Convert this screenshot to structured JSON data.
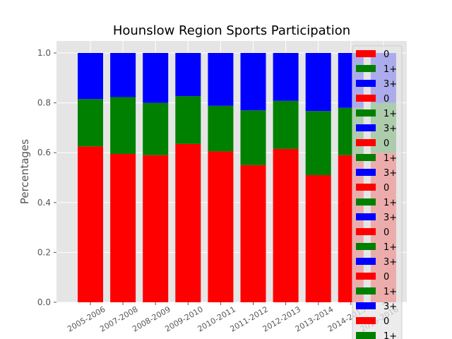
{
  "chart_data": {
    "type": "bar",
    "stacked": true,
    "title": "Hounslow Region Sports Participation",
    "xlabel": "",
    "ylabel": "Percentages",
    "ylim": [
      0,
      1.0
    ],
    "yticks": [
      "0.0",
      "0.2",
      "0.4",
      "0.6",
      "0.8",
      "1.0"
    ],
    "grid": true,
    "legend_position": "right",
    "categories": [
      "2005-2006",
      "2007-2008",
      "2008-2009",
      "2009-2010",
      "2010-2011",
      "2011-2012",
      "2012-2013",
      "2013-2014",
      "2014-2015",
      "2015-2016"
    ],
    "series": [
      {
        "name": "0",
        "color": "#ff0000",
        "values": [
          0.625,
          0.595,
          0.59,
          0.635,
          0.605,
          0.55,
          0.615,
          0.51,
          0.59,
          0.6
        ]
      },
      {
        "name": "1+",
        "color": "#008000",
        "values": [
          0.19,
          0.228,
          0.21,
          0.192,
          0.183,
          0.22,
          0.193,
          0.257,
          0.19,
          0.2
        ]
      },
      {
        "name": "3+",
        "color": "#0000ff",
        "values": [
          0.185,
          0.177,
          0.2,
          0.173,
          0.212,
          0.23,
          0.192,
          0.233,
          0.22,
          0.2
        ]
      }
    ],
    "legend_entries": [
      {
        "label": "0",
        "color": "#ff0000"
      },
      {
        "label": "1+",
        "color": "#008000"
      },
      {
        "label": "3+",
        "color": "#0000ff"
      },
      {
        "label": "0",
        "color": "#ff0000"
      },
      {
        "label": "1+",
        "color": "#008000"
      },
      {
        "label": "3+",
        "color": "#0000ff"
      },
      {
        "label": "0",
        "color": "#ff0000"
      },
      {
        "label": "1+",
        "color": "#008000"
      },
      {
        "label": "3+",
        "color": "#0000ff"
      },
      {
        "label": "0",
        "color": "#ff0000"
      },
      {
        "label": "1+",
        "color": "#008000"
      },
      {
        "label": "3+",
        "color": "#0000ff"
      },
      {
        "label": "0",
        "color": "#ff0000"
      },
      {
        "label": "1+",
        "color": "#008000"
      },
      {
        "label": "3+",
        "color": "#0000ff"
      },
      {
        "label": "0",
        "color": "#ff0000"
      },
      {
        "label": "1+",
        "color": "#008000"
      },
      {
        "label": "3+",
        "color": "#0000ff"
      },
      {
        "label": "0",
        "color": "#ff0000"
      },
      {
        "label": "1+",
        "color": "#008000"
      }
    ]
  }
}
